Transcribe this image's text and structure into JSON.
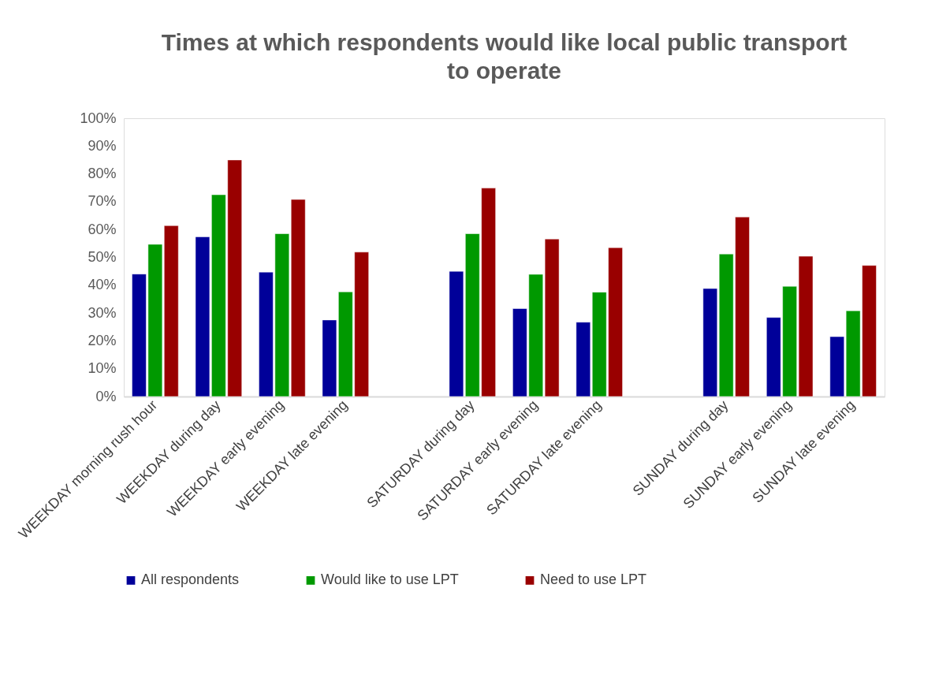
{
  "chart_data": {
    "type": "bar",
    "title": "Times at which respondents would like local public transport to operate",
    "categories": [
      "WEEKDAY morning rush hour",
      "WEEKDAY during day",
      "WEEKDAY early evening",
      "WEEKDAY late evening",
      null,
      "SATURDAY during day",
      "SATURDAY early evening",
      "SATURDAY late evening",
      null,
      "SUNDAY during day",
      "SUNDAY early evening",
      "SUNDAY late evening"
    ],
    "series": [
      {
        "name": "All respondents",
        "color": "#000099",
        "values": [
          44,
          57.4,
          44.7,
          27.5,
          null,
          45,
          31.6,
          26.7,
          null,
          38.8,
          28.4,
          21.5
        ]
      },
      {
        "name": "Would like to use LPT",
        "color": "#009900",
        "values": [
          54.7,
          72.5,
          58.5,
          37.6,
          null,
          58.5,
          43.9,
          37.5,
          null,
          51.2,
          39.6,
          30.8
        ]
      },
      {
        "name": "Need to use LPT",
        "color": "#990000",
        "values": [
          61.4,
          85,
          70.8,
          51.9,
          null,
          74.9,
          56.6,
          53.5,
          null,
          64.5,
          50.4,
          47.1
        ]
      }
    ],
    "ylim": [
      0,
      100
    ],
    "yticks": [
      {
        "value": 0,
        "label": "0%"
      },
      {
        "value": 10,
        "label": "10%"
      },
      {
        "value": 20,
        "label": "20%"
      },
      {
        "value": 30,
        "label": "30%"
      },
      {
        "value": 40,
        "label": "40%"
      },
      {
        "value": 50,
        "label": "50%"
      },
      {
        "value": 60,
        "label": "60%"
      },
      {
        "value": 70,
        "label": "70%"
      },
      {
        "value": 80,
        "label": "80%"
      },
      {
        "value": 90,
        "label": "90%"
      },
      {
        "value": 100,
        "label": "100%"
      }
    ],
    "grid": false,
    "legend": "bottom"
  }
}
